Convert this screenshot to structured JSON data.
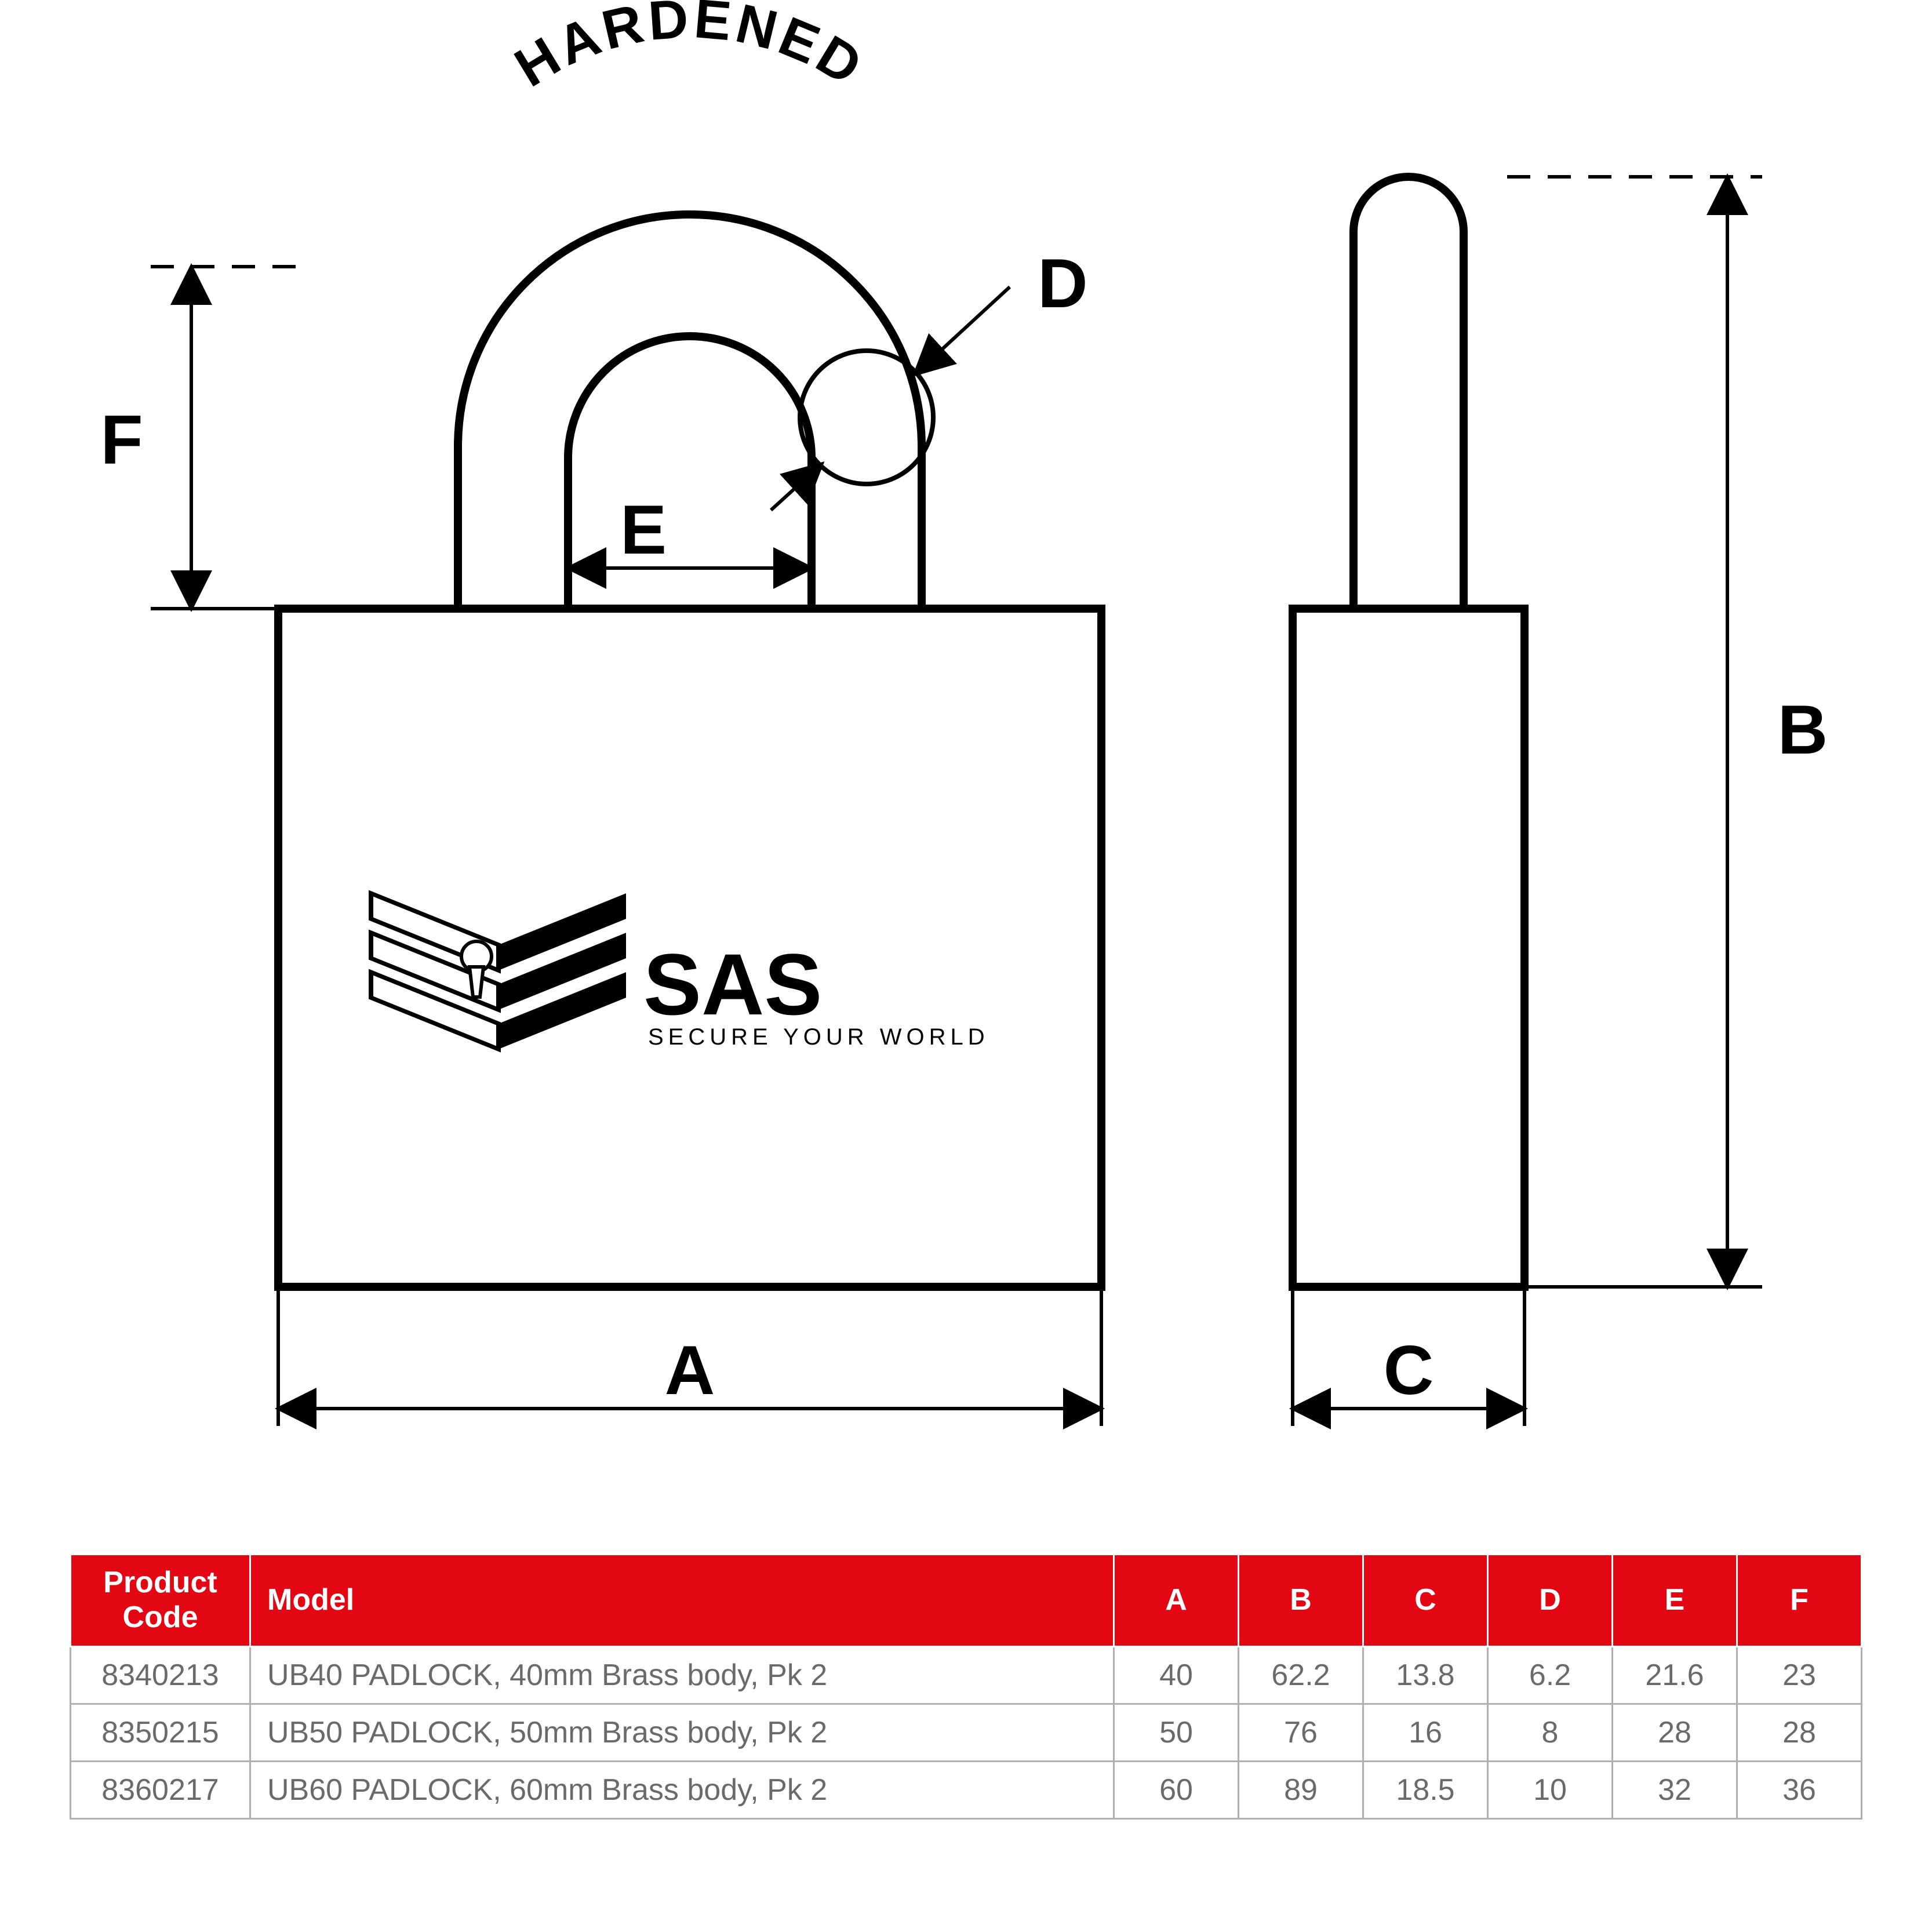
{
  "diagram": {
    "shackle_text": "HARDENED",
    "logo_main": "SAS",
    "logo_sub": "SECURE YOUR WORLD",
    "labels": {
      "A": "A",
      "B": "B",
      "C": "C",
      "D": "D",
      "E": "E",
      "F": "F"
    },
    "stroke_color": "#000000",
    "stroke_width_main": 14,
    "stroke_width_dim": 6,
    "background_color": "#ffffff",
    "header_red": "#e30613",
    "header_text_color": "#ffffff",
    "cell_text_color": "#6a6a6a",
    "cell_border_color": "#b0b0b0"
  },
  "table": {
    "columns": [
      "Product\nCode",
      "Model",
      "A",
      "B",
      "C",
      "D",
      "E",
      "F"
    ],
    "rows": [
      [
        "8340213",
        "UB40 PADLOCK, 40mm Brass body, Pk 2",
        "40",
        "62.2",
        "13.8",
        "6.2",
        "21.6",
        "23"
      ],
      [
        "8350215",
        "UB50 PADLOCK, 50mm Brass body, Pk 2",
        "50",
        "76",
        "16",
        "8",
        "28",
        "28"
      ],
      [
        "8360217",
        "UB60 PADLOCK, 60mm Brass body, Pk 2",
        "60",
        "89",
        "18.5",
        "10",
        "32",
        "36"
      ]
    ]
  }
}
